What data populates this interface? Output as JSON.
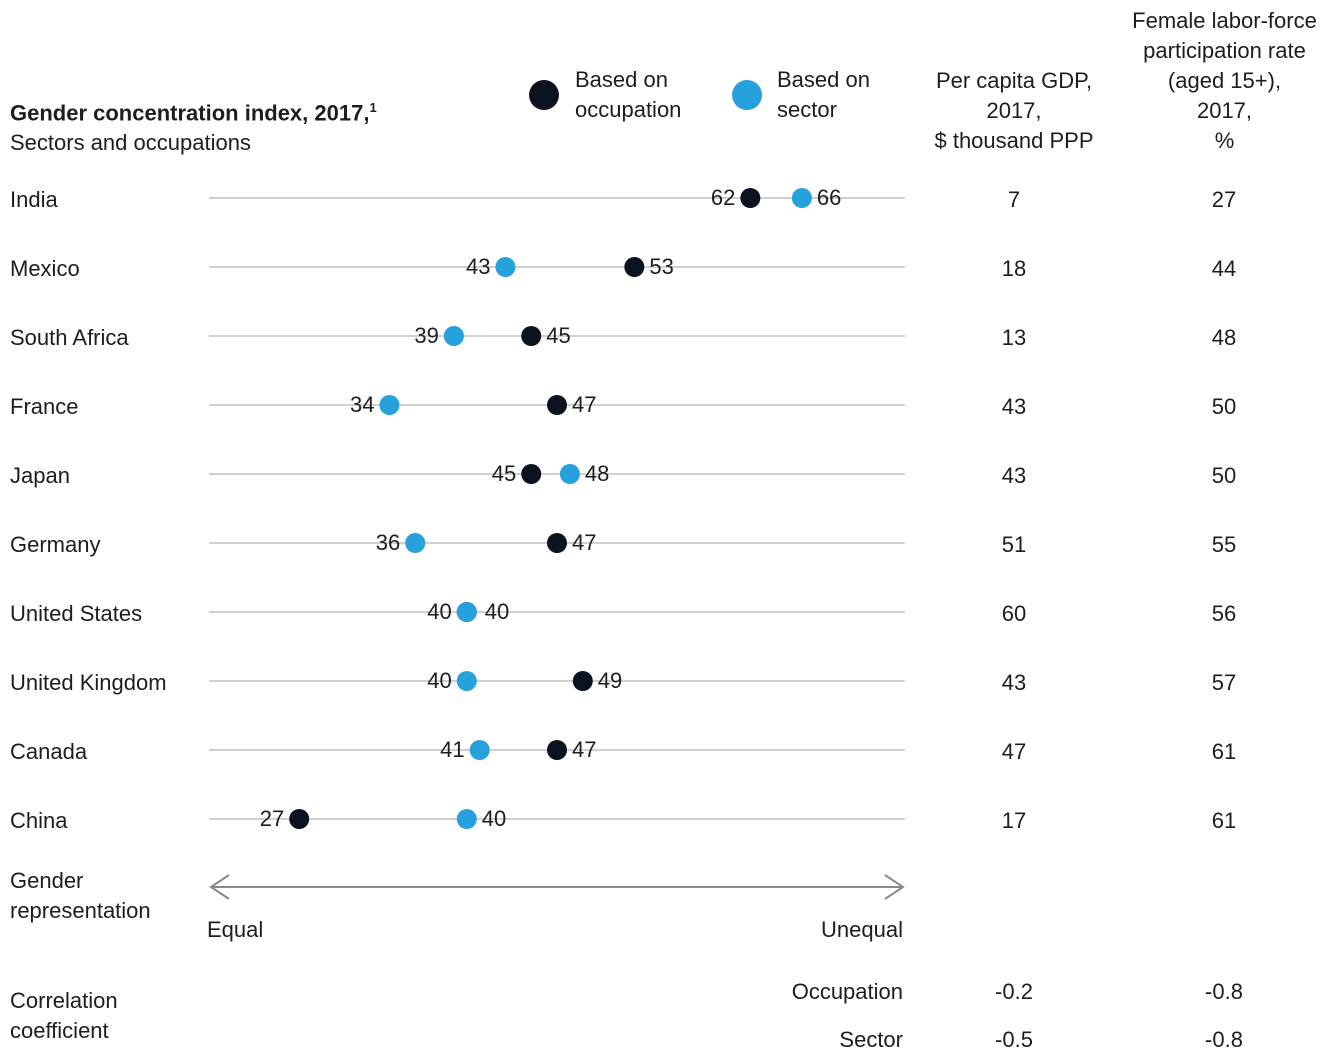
{
  "header": {
    "title": "Gender concentration index, 2017",
    "title_sup": "1",
    "subtitle": "Sectors and occupations"
  },
  "legend": {
    "occupation_line1": "Based on",
    "occupation_line2": "occupation",
    "sector_line1": "Based on",
    "sector_line2": "sector"
  },
  "columns": {
    "gdp": [
      "Per capita GDP,",
      "2017,",
      "$ thousand PPP"
    ],
    "flfp": [
      "Female labor-force",
      "participation rate",
      "(aged 15+),",
      "2017,",
      "%"
    ]
  },
  "colors": {
    "occupation": "#0b1220",
    "sector": "#27a1dc",
    "gridline": "#d0d0d0",
    "arrow": "#888888"
  },
  "chart_data": {
    "type": "scatter",
    "title": "Gender concentration index, 2017",
    "subtitle": "Sectors and occupations",
    "xlim": [
      20,
      74
    ],
    "categories": [
      "India",
      "Mexico",
      "South Africa",
      "France",
      "Japan",
      "Germany",
      "United States",
      "United Kingdom",
      "Canada",
      "China"
    ],
    "series": [
      {
        "name": "Based on occupation",
        "values": [
          62,
          53,
          45,
          47,
          45,
          47,
          40,
          49,
          47,
          27
        ]
      },
      {
        "name": "Based on sector",
        "values": [
          66,
          43,
          39,
          34,
          48,
          36,
          40,
          40,
          41,
          40
        ]
      }
    ],
    "per_capita_gdp": [
      7,
      18,
      13,
      43,
      43,
      51,
      60,
      43,
      47,
      17
    ],
    "female_lfp": [
      27,
      44,
      48,
      50,
      50,
      55,
      56,
      57,
      61,
      61
    ]
  },
  "axis": {
    "label_line1": "Gender",
    "label_line2": "representation",
    "left": "Equal",
    "right": "Unequal"
  },
  "correlation": {
    "label_line1": "Correlation",
    "label_line2": "coefficient",
    "rows": [
      {
        "name": "Occupation",
        "gdp": "-0.2",
        "flfp": "-0.8"
      },
      {
        "name": "Sector",
        "gdp": "-0.5",
        "flfp": "-0.8"
      }
    ]
  }
}
